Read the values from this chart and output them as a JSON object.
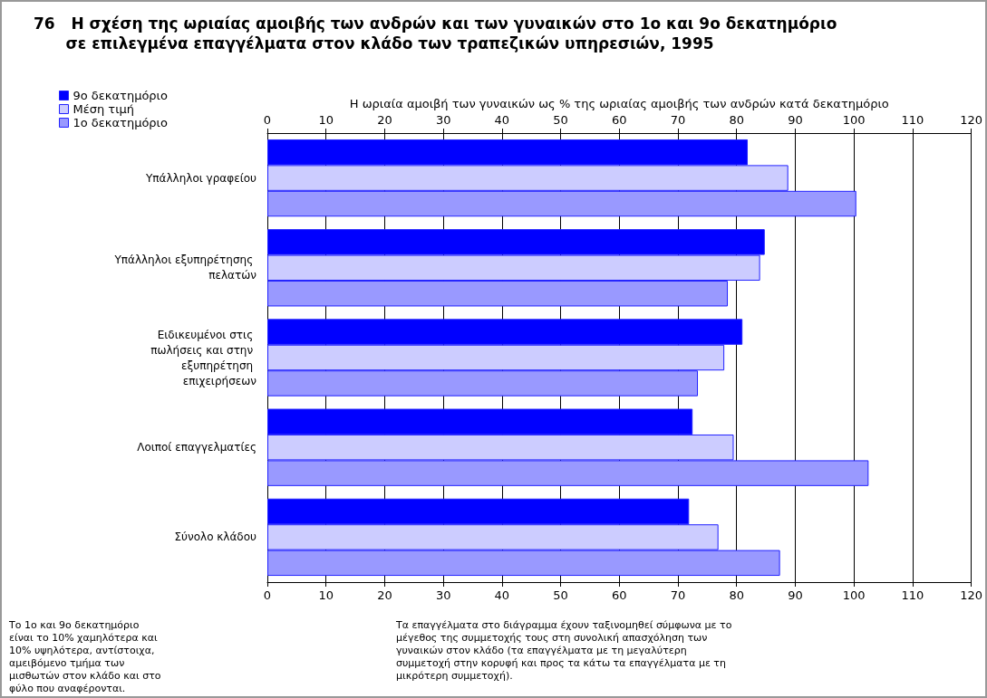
{
  "chart_data": {
    "type": "bar",
    "orientation": "horizontal",
    "title": "76   Η σχέση της ωριαίας αμοιβής των ανδρών και των γυναικών στο 1ο και 9ο δεκατημόριο\n      σε επιλεγμένα επαγγέλματα στον κλάδο των τραπεζικών υπηρεσιών, 1995",
    "x2label": "Η ωριαία αμοιβή των γυναικών ως % της ωριαίας αμοιβής των ανδρών κατά δεκατημόριο",
    "categories": [
      "Υπάλληλοι γραφείου",
      "Υπάλληλοι εξυπηρέτησης πελατών",
      "Ειδικευμένοι στις πωλήσεις και στην εξυπηρέτηση επιχειρήσεων",
      "Λοιποί επαγγελματίες",
      "Σύνολο κλάδου"
    ],
    "series": [
      {
        "name": "9ο δεκατημόριο",
        "color": "#0000ff",
        "values": [
          81.9,
          84.8,
          81.0,
          72.5,
          71.9
        ]
      },
      {
        "name": "Μέση τιμή",
        "color": "#ccccff",
        "values": [
          88.8,
          84.0,
          77.9,
          79.5,
          76.9
        ]
      },
      {
        "name": "1ο δεκατημόριο",
        "color": "#9999ff",
        "values": [
          100.4,
          78.5,
          73.4,
          102.5,
          87.4
        ]
      }
    ],
    "xlim": [
      0,
      120
    ],
    "xticks": [
      0,
      10,
      20,
      30,
      40,
      50,
      60,
      70,
      80,
      90,
      100,
      110,
      120
    ],
    "x2lim": [
      0,
      120
    ],
    "x2ticks": [
      0,
      10,
      20,
      30,
      40,
      50,
      60,
      70,
      80,
      90,
      100,
      110,
      120
    ],
    "grid": "x",
    "legend": "top left",
    "annotations": [
      "Το 1ο και 9ο δεκατημόριο είναι το 10% χαμηλότερα και 10% υψηλότερα, αντίστοιχα, αμειβόμενο τμήμα των μισθωτών στον κλάδο και στο φύλο που αναφέρονται.",
      "Τα επαγγέλματα στο διάγραμμα έχουν ταξινομηθεί σύμφωνα με το μέγεθος της συμμετοχής τους στη συνολική απασχόληση των γυναικών στον κλάδο (τα επαγγέλματα με τη μεγαλύτερη συμμετοχή στην κορυφή και προς τα κάτω τα επαγγέλματα με τη μικρότερη συμμετοχή)."
    ]
  }
}
